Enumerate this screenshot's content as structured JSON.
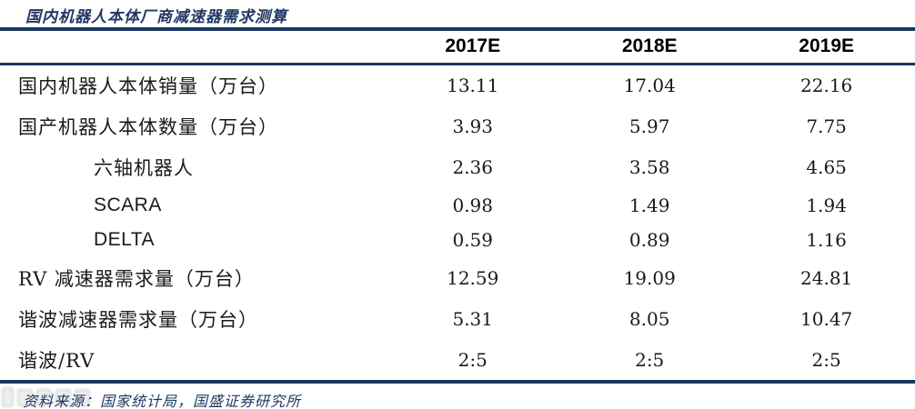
{
  "title": "国内机器人本体厂商减速器需求测算",
  "table": {
    "columns": [
      "2017E",
      "2018E",
      "2019E"
    ],
    "rows": [
      {
        "label": "国内机器人本体销量（万台）",
        "indent": false,
        "values": [
          "13.11",
          "17.04",
          "22.16"
        ]
      },
      {
        "label": "国产机器人本体数量（万台）",
        "indent": false,
        "values": [
          "3.93",
          "5.97",
          "7.75"
        ]
      },
      {
        "label": "六轴机器人",
        "indent": true,
        "values": [
          "2.36",
          "3.58",
          "4.65"
        ]
      },
      {
        "label": "SCARA",
        "indent": true,
        "values": [
          "0.98",
          "1.49",
          "1.94"
        ]
      },
      {
        "label": "DELTA",
        "indent": true,
        "values": [
          "0.59",
          "0.89",
          "1.16"
        ]
      },
      {
        "label": "RV 减速器需求量（万台）",
        "indent": false,
        "values": [
          "12.59",
          "19.09",
          "24.81"
        ]
      },
      {
        "label": "谐波减速器需求量（万台）",
        "indent": false,
        "values": [
          "5.31",
          "8.05",
          "10.47"
        ]
      },
      {
        "label": "谐波/RV",
        "indent": false,
        "values": [
          "2:5",
          "2:5",
          "2:5"
        ]
      }
    ]
  },
  "source": "资料来源：国家统计局，国盛证券研究所",
  "colors": {
    "rule_navy": "#17375E",
    "accent_text_navy": "#1F3864",
    "body_text": "#1A1A1A",
    "watermark_gray": "#B9B9B9"
  }
}
